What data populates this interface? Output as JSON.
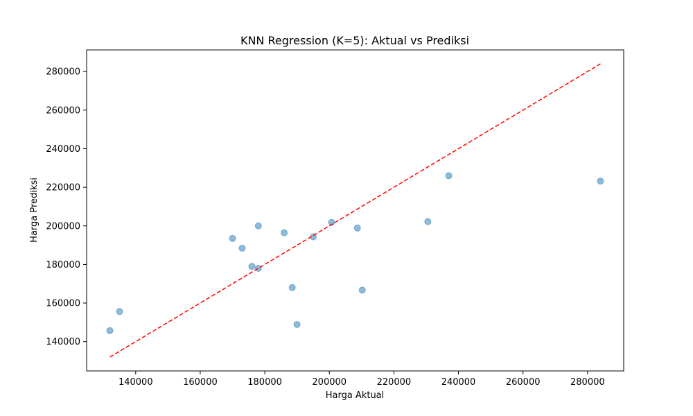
{
  "chart_data": {
    "type": "scatter",
    "title": "KNN Regression (K=5): Aktual vs Prediksi",
    "xlabel": "Harga Aktual",
    "ylabel": "Harga Prediksi",
    "xlim": [
      124800,
      291200
    ],
    "ylim": [
      124800,
      291200
    ],
    "xticks": [
      140000,
      160000,
      180000,
      200000,
      220000,
      240000,
      260000,
      280000
    ],
    "yticks": [
      140000,
      160000,
      180000,
      200000,
      220000,
      240000,
      260000,
      280000
    ],
    "grid": false,
    "point_color": "#1f77b4",
    "reference_line": {
      "from": [
        132000,
        132000
      ],
      "to": [
        284000,
        284000
      ],
      "color": "#ff0000",
      "style": "dashed"
    },
    "points": [
      {
        "x": 132000,
        "y": 145700
      },
      {
        "x": 135000,
        "y": 155600
      },
      {
        "x": 170000,
        "y": 193500
      },
      {
        "x": 173000,
        "y": 188400
      },
      {
        "x": 176000,
        "y": 179000
      },
      {
        "x": 178000,
        "y": 200000
      },
      {
        "x": 178000,
        "y": 178000
      },
      {
        "x": 186000,
        "y": 196400
      },
      {
        "x": 188500,
        "y": 168000
      },
      {
        "x": 190000,
        "y": 148900
      },
      {
        "x": 195000,
        "y": 194300
      },
      {
        "x": 200700,
        "y": 201800
      },
      {
        "x": 208700,
        "y": 198900
      },
      {
        "x": 210200,
        "y": 166700
      },
      {
        "x": 230500,
        "y": 202200
      },
      {
        "x": 237000,
        "y": 226000
      },
      {
        "x": 284000,
        "y": 223200
      }
    ]
  }
}
